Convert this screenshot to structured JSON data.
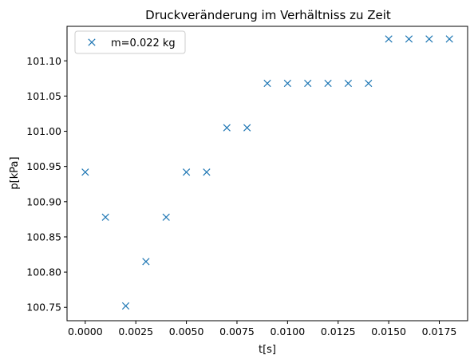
{
  "chart_data": {
    "type": "scatter",
    "title": "Druckveränderung im Verhältniss zu Zeit",
    "xlabel": "t[s]",
    "ylabel": "p[kPa]",
    "xlim": [
      -0.0009,
      0.0189
    ],
    "ylim": [
      100.731,
      101.149
    ],
    "xticks": [
      "0.0000",
      "0.0025",
      "0.0050",
      "0.0075",
      "0.0100",
      "0.0125",
      "0.0150",
      "0.0175"
    ],
    "yticks": [
      "100.75",
      "100.80",
      "100.85",
      "100.90",
      "100.95",
      "101.00",
      "101.05",
      "101.10"
    ],
    "grid": false,
    "legend_position": "upper left",
    "series": [
      {
        "name": "m=0.022 kg",
        "marker": "x",
        "color": "#1f77b4",
        "x": [
          0.0,
          0.001,
          0.002,
          0.003,
          0.004,
          0.005,
          0.006,
          0.007,
          0.008,
          0.009,
          0.01,
          0.011,
          0.012,
          0.013,
          0.014,
          0.015,
          0.016,
          0.017,
          0.018
        ],
        "y": [
          100.942,
          100.878,
          100.752,
          100.815,
          100.878,
          100.942,
          100.942,
          101.005,
          101.005,
          101.068,
          101.068,
          101.068,
          101.068,
          101.068,
          101.068,
          101.131,
          101.131,
          101.131,
          101.131
        ]
      }
    ]
  }
}
